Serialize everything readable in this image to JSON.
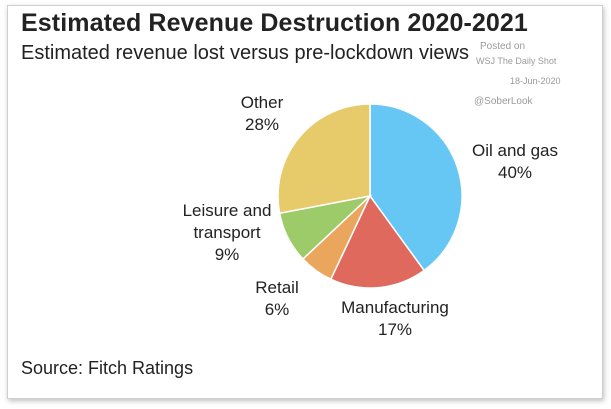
{
  "title": "Estimated Revenue Destruction 2020-2021",
  "subtitle": "Estimated revenue lost versus pre-lockdown views",
  "watermark": {
    "line1": "Posted on",
    "line2": "WSJ  The Daily Shot",
    "line3": "18-Jun-2020",
    "line4": "@SoberLook"
  },
  "source": "Source: Fitch Ratings",
  "chart_data": {
    "type": "pie",
    "unit": "%",
    "slices": [
      {
        "name": "Oil and gas",
        "label_lines": [
          "Oil and gas"
        ],
        "value": 40,
        "value_label": "40%",
        "color": "#66c7f5"
      },
      {
        "name": "Manufacturing",
        "label_lines": [
          "Manufacturing"
        ],
        "value": 17,
        "value_label": "17%",
        "color": "#e0695e"
      },
      {
        "name": "Retail",
        "label_lines": [
          "Retail"
        ],
        "value": 6,
        "value_label": "6%",
        "color": "#e9a65c"
      },
      {
        "name": "Leisure and transport",
        "label_lines": [
          "Leisure and",
          "transport"
        ],
        "value": 9,
        "value_label": "9%",
        "color": "#9dcb6a"
      },
      {
        "name": "Other",
        "label_lines": [
          "Other"
        ],
        "value": 28,
        "value_label": "28%",
        "color": "#e7cb6a"
      }
    ]
  }
}
